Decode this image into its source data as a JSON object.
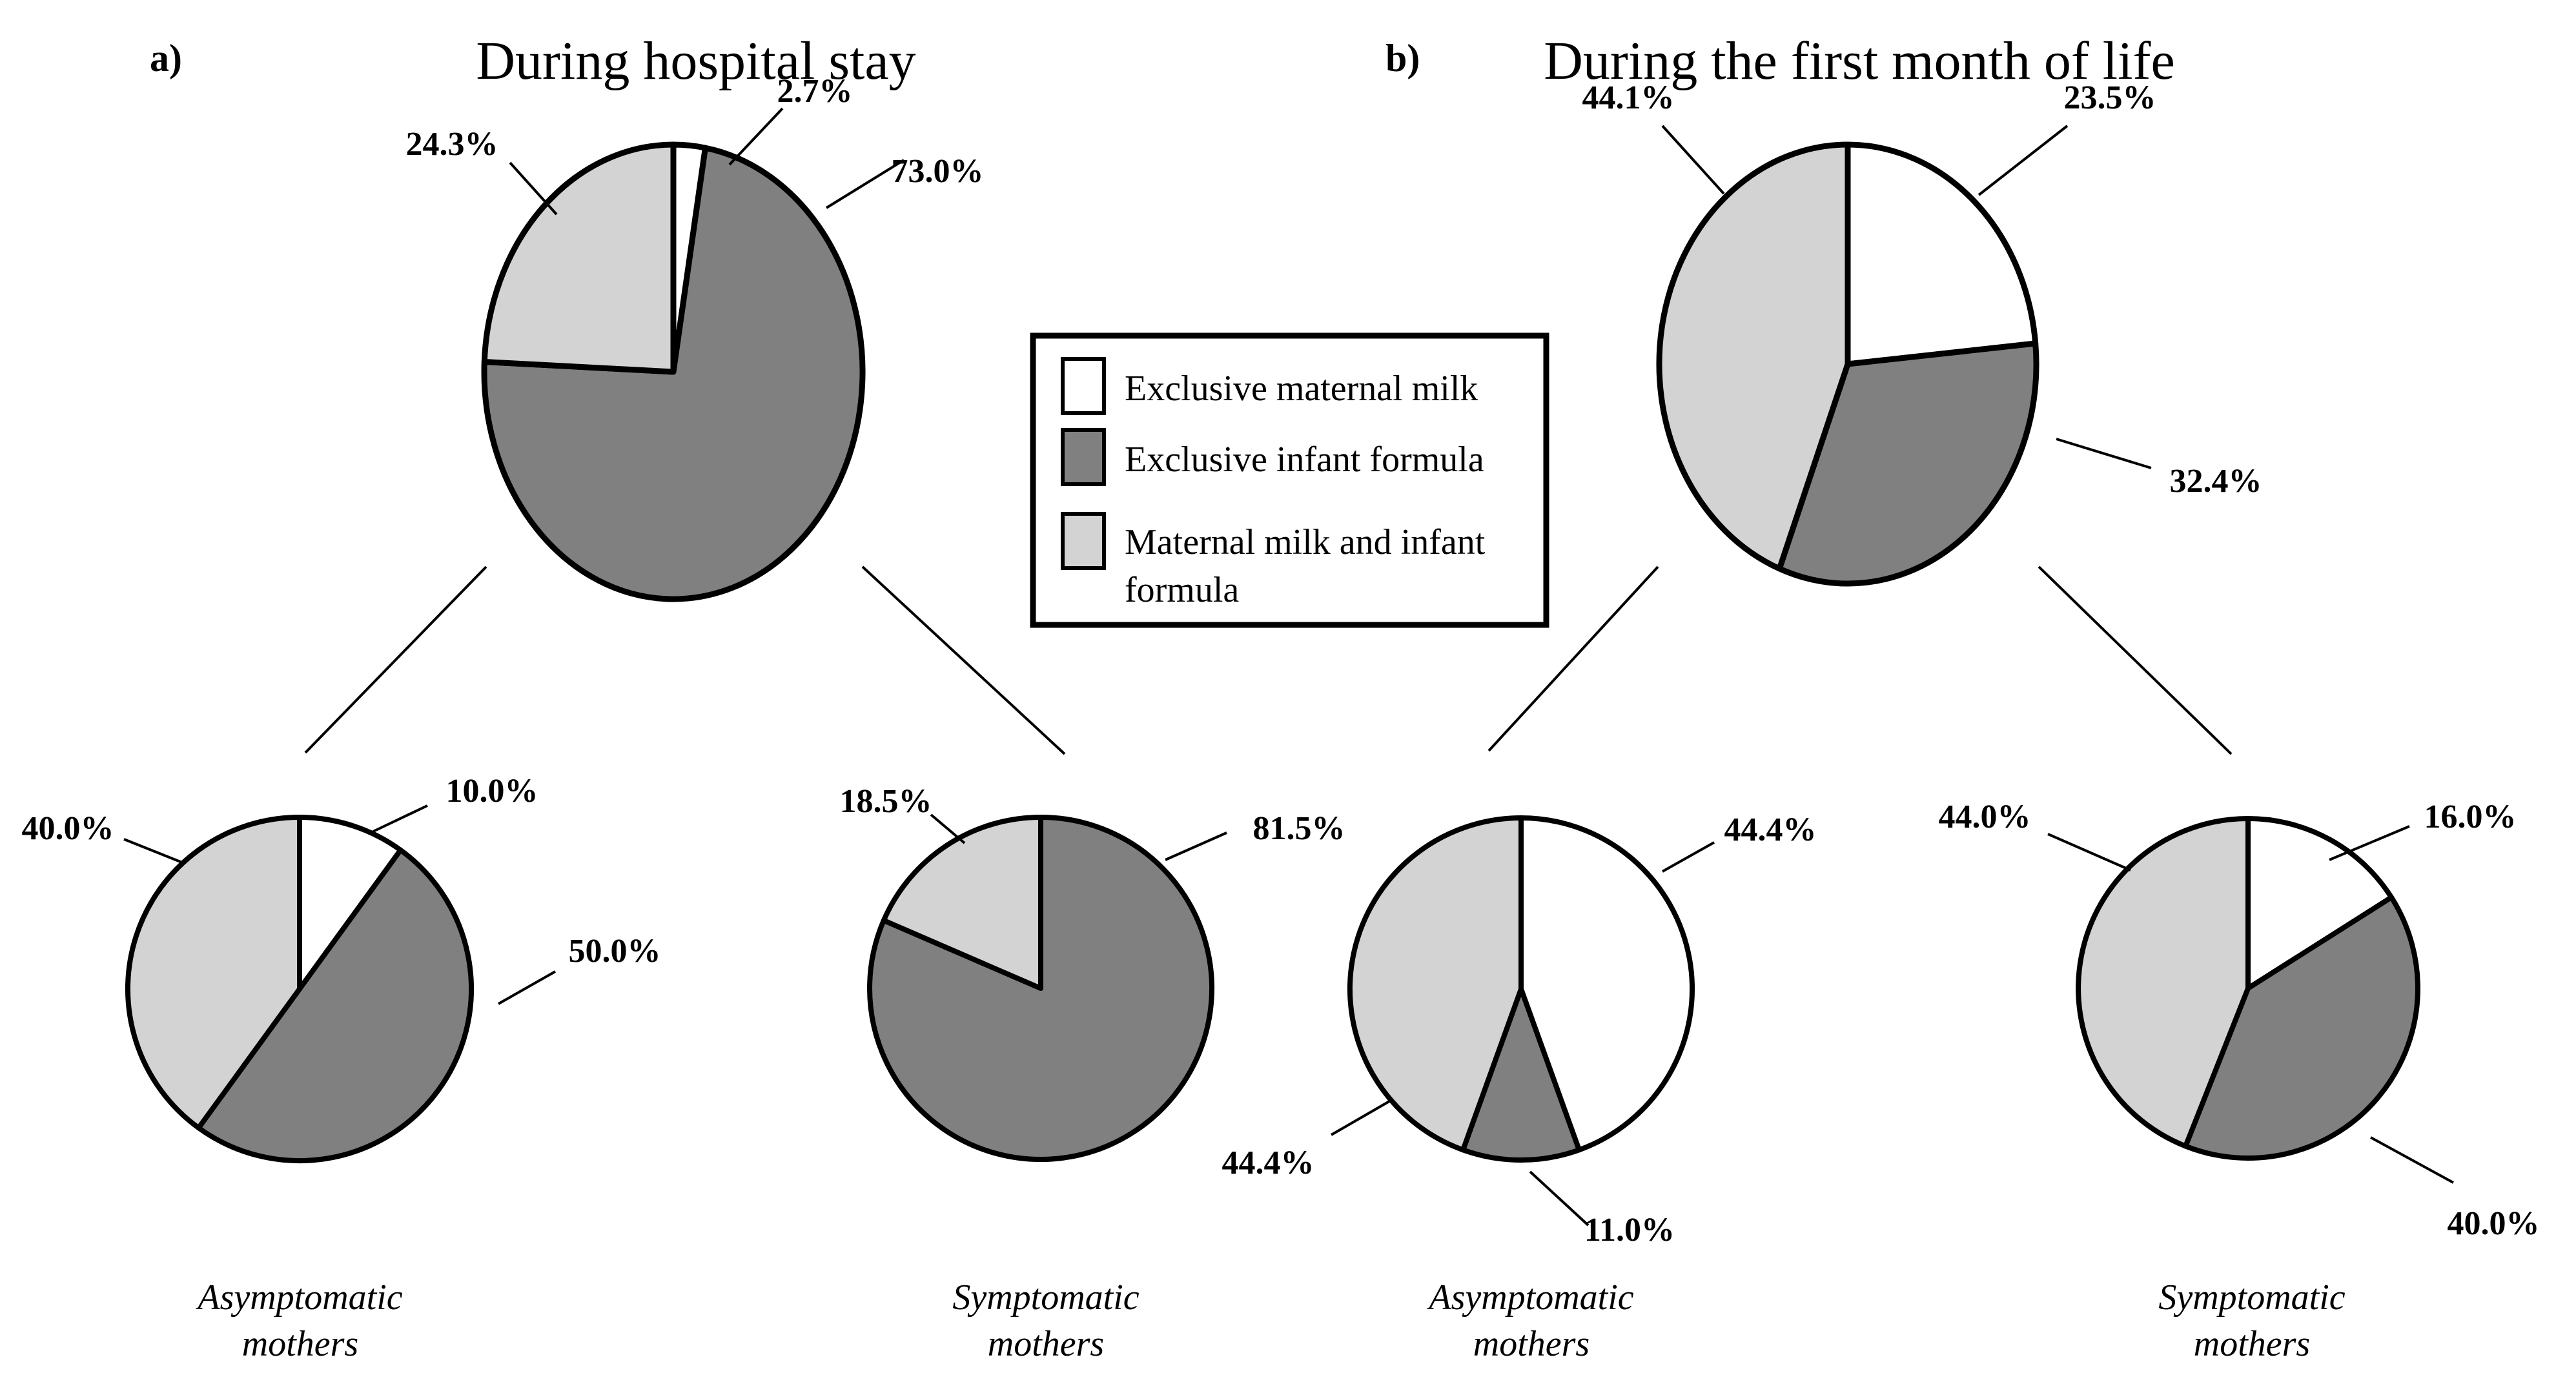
{
  "panels": [
    {
      "tag": "a)",
      "title": "During hospital stay"
    },
    {
      "tag": "b)",
      "title": "During the first month of life"
    }
  ],
  "legend": {
    "items": [
      {
        "label": "Exclusive maternal milk",
        "lines": [
          "Exclusive maternal milk"
        ],
        "color": "#ffffff"
      },
      {
        "label": "Exclusive infant formula",
        "lines": [
          "Exclusive infant formula"
        ],
        "color": "#808080"
      },
      {
        "label": "Maternal milk and infant formula",
        "lines": [
          "Maternal milk and infant",
          "formula"
        ],
        "color": "#d3d3d3"
      }
    ]
  },
  "chart_data": [
    {
      "id": "hospital-all",
      "type": "pie",
      "panel": "a",
      "caption": "",
      "caption_lines": [],
      "slices": [
        {
          "category": "Exclusive maternal milk",
          "value": 2.7,
          "display": "2.7%",
          "color": "#ffffff"
        },
        {
          "category": "Exclusive infant formula",
          "value": 73.0,
          "display": "73.0%",
          "color": "#808080"
        },
        {
          "category": "Maternal milk and infant formula",
          "value": 24.3,
          "display": "24.3%",
          "color": "#d3d3d3"
        }
      ]
    },
    {
      "id": "month-all",
      "type": "pie",
      "panel": "b",
      "caption": "",
      "caption_lines": [],
      "slices": [
        {
          "category": "Exclusive maternal milk",
          "value": 23.5,
          "display": "23.5%",
          "color": "#ffffff"
        },
        {
          "category": "Exclusive infant formula",
          "value": 32.4,
          "display": "32.4%",
          "color": "#808080"
        },
        {
          "category": "Maternal milk and infant formula",
          "value": 44.1,
          "display": "44.1%",
          "color": "#d3d3d3"
        }
      ]
    },
    {
      "id": "hospital-asymptomatic",
      "type": "pie",
      "panel": "a",
      "caption": "Asymptomatic mothers",
      "caption_lines": [
        "Asymptomatic",
        "mothers"
      ],
      "slices": [
        {
          "category": "Exclusive maternal milk",
          "value": 10.0,
          "display": "10.0%",
          "color": "#ffffff"
        },
        {
          "category": "Exclusive infant formula",
          "value": 50.0,
          "display": "50.0%",
          "color": "#808080"
        },
        {
          "category": "Maternal milk and infant formula",
          "value": 40.0,
          "display": "40.0%",
          "color": "#d3d3d3"
        }
      ]
    },
    {
      "id": "hospital-symptomatic",
      "type": "pie",
      "panel": "a",
      "caption": "Symptomatic mothers",
      "caption_lines": [
        "Symptomatic",
        "mothers"
      ],
      "slices": [
        {
          "category": "Exclusive infant formula",
          "value": 81.5,
          "display": "81.5%",
          "color": "#808080"
        },
        {
          "category": "Maternal milk and infant formula",
          "value": 18.5,
          "display": "18.5%",
          "color": "#d3d3d3"
        }
      ]
    },
    {
      "id": "month-asymptomatic",
      "type": "pie",
      "panel": "b",
      "caption": "Asymptomatic mothers",
      "caption_lines": [
        "Asymptomatic",
        "mothers"
      ],
      "slices": [
        {
          "category": "Exclusive maternal milk",
          "value": 44.4,
          "display": "44.4%",
          "color": "#ffffff"
        },
        {
          "category": "Exclusive infant formula",
          "value": 11.0,
          "display": "11.0%",
          "color": "#808080"
        },
        {
          "category": "Maternal milk and infant formula",
          "value": 44.4,
          "display": "44.4%",
          "color": "#d3d3d3"
        }
      ]
    },
    {
      "id": "month-symptomatic",
      "type": "pie",
      "panel": "b",
      "caption": "Symptomatic mothers",
      "caption_lines": [
        "Symptomatic",
        "mothers"
      ],
      "slices": [
        {
          "category": "Exclusive maternal milk",
          "value": 16.0,
          "display": "16.0%",
          "color": "#ffffff"
        },
        {
          "category": "Exclusive infant formula",
          "value": 40.0,
          "display": "40.0%",
          "color": "#808080"
        },
        {
          "category": "Maternal milk and infant formula",
          "value": 44.0,
          "display": "44.0%",
          "color": "#d3d3d3"
        }
      ]
    }
  ]
}
